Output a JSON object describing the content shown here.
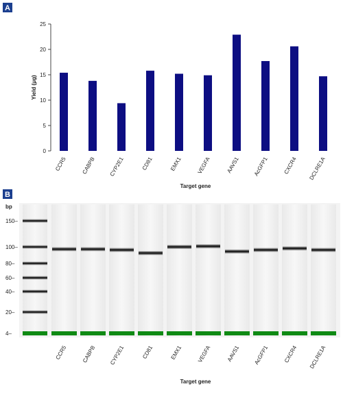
{
  "panel_a_label": "A",
  "panel_b_label": "B",
  "chart_data": [
    {
      "type": "bar",
      "categories": [
        "CCR5",
        "CABPB",
        "CYP2E1",
        "CD81",
        "EMX1",
        "VEGFA",
        "AAVS1",
        "AcGFP1",
        "CXCR4",
        "DCLRE1A"
      ],
      "values": [
        15.4,
        13.8,
        9.4,
        15.8,
        15.2,
        14.9,
        22.9,
        17.7,
        20.6,
        14.7
      ],
      "title": "",
      "xlabel": "Target gene",
      "ylabel": "Yield (μg)",
      "ylim": [
        0,
        25
      ],
      "yticks": [
        0,
        5,
        10,
        15,
        20,
        25
      ],
      "grid": false,
      "colors": {
        "bar": "#0d0e82"
      }
    },
    {
      "type": "gel",
      "categories": [
        "CCR5",
        "CABPB",
        "CYP2E1",
        "CD81",
        "EMX1",
        "VEGFA",
        "AAVS1",
        "AcGFP1",
        "CXCR4",
        "DCLRE1A"
      ],
      "band_sizes_bp": [
        97,
        97,
        96,
        92,
        100,
        101,
        94,
        96,
        98,
        96
      ],
      "ladder_bp": [
        150,
        100,
        80,
        60,
        40,
        20,
        4
      ],
      "ladder_unit": "bp",
      "marker_bp": 4,
      "xlabel": "Target gene",
      "colors": {
        "marker": "#0f8a14",
        "band": "#111111",
        "lane": "#f2f2f2"
      }
    }
  ]
}
